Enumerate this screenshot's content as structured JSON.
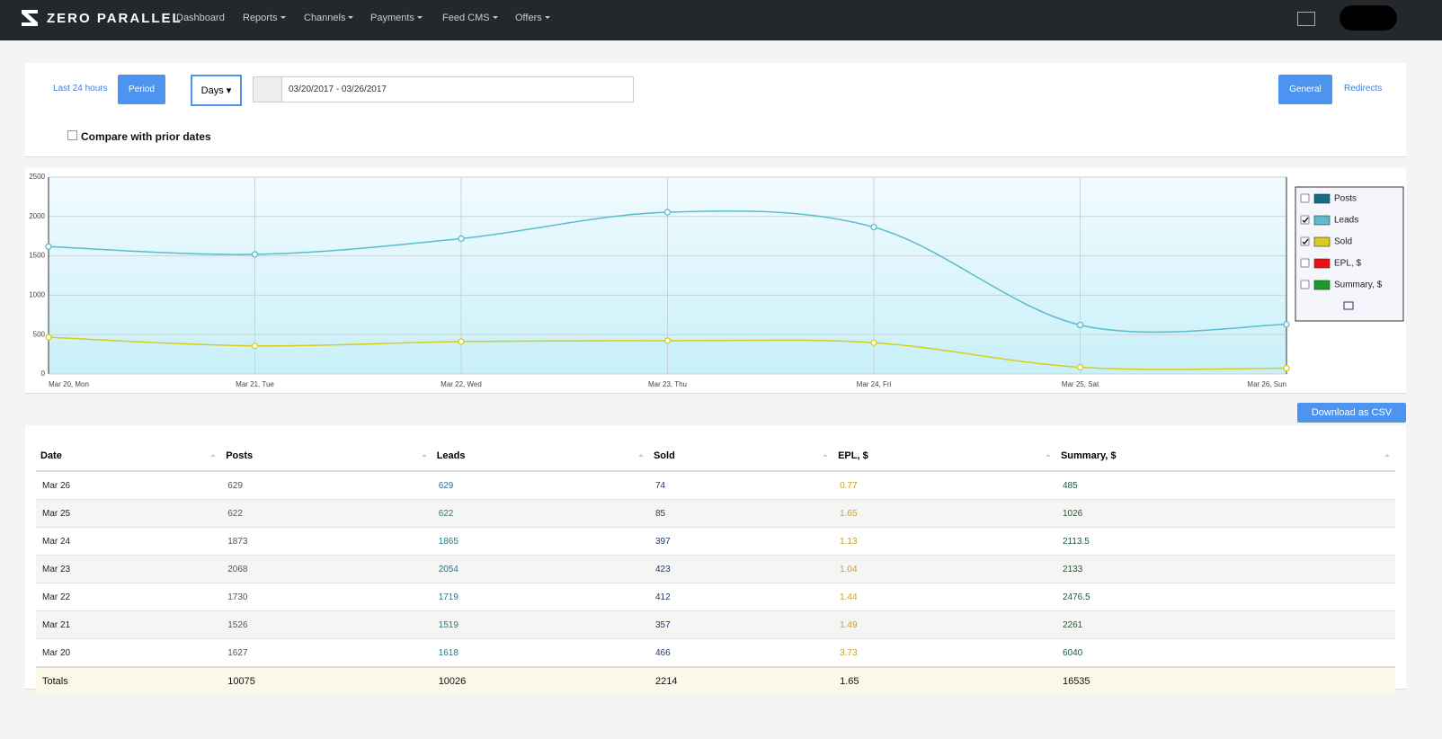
{
  "nav": {
    "brand": "ZERO PARALLEL",
    "items": [
      "Dashboard",
      "Reports",
      "Channels",
      "Payments",
      "Feed CMS",
      "Offers"
    ]
  },
  "filters": {
    "last24": "Last 24 hours",
    "period": "Period",
    "unit": "Days",
    "range": "03/20/2017 - 03/26/2017",
    "general": "General",
    "redirects": "Redirects",
    "compare": "Compare with prior dates"
  },
  "chart_data": {
    "type": "line",
    "categories": [
      "Mar 20, Mon",
      "Mar 21, Tue",
      "Mar 22, Wed",
      "Mar 23, Thu",
      "Mar 24, Fri",
      "Mar 25, Sat",
      "Mar 26, Sun"
    ],
    "series": [
      {
        "name": "Leads",
        "color": "#5bbccc",
        "values": [
          1618,
          1519,
          1719,
          2054,
          1865,
          622,
          629
        ]
      },
      {
        "name": "Sold",
        "color": "#d8cc1e",
        "values": [
          466,
          357,
          412,
          423,
          397,
          85,
          74
        ]
      }
    ],
    "hidden_series": [
      {
        "name": "Posts",
        "color": "#0e6f86"
      },
      {
        "name": "EPL, $",
        "color": "#ee1111"
      },
      {
        "name": "Summary, $",
        "color": "#1a9a2a"
      }
    ],
    "ylim": [
      0,
      2500
    ],
    "yticks": [
      0,
      500,
      1000,
      1500,
      2000,
      2500
    ],
    "grid": true
  },
  "download": "Download as CSV",
  "table": {
    "header": [
      "Date",
      "Posts",
      "Leads",
      "Sold",
      "EPL, $",
      "Summary, $"
    ],
    "rows": [
      [
        "Mar 26",
        629,
        629,
        74,
        0.77,
        485
      ],
      [
        "Mar 25",
        622,
        622,
        85,
        1.65,
        1026
      ],
      [
        "Mar 24",
        1873,
        1865,
        397,
        1.13,
        2113.5
      ],
      [
        "Mar 23",
        2068,
        2054,
        423,
        1.04,
        2133
      ],
      [
        "Mar 22",
        1730,
        1719,
        412,
        1.44,
        2476.5
      ],
      [
        "Mar 21",
        1526,
        1519,
        357,
        1.49,
        2261
      ],
      [
        "Mar 20",
        1627,
        1618,
        466,
        3.73,
        6040
      ]
    ],
    "totals": [
      "Totals",
      10075,
      10026,
      2214,
      1.65,
      16535
    ]
  }
}
